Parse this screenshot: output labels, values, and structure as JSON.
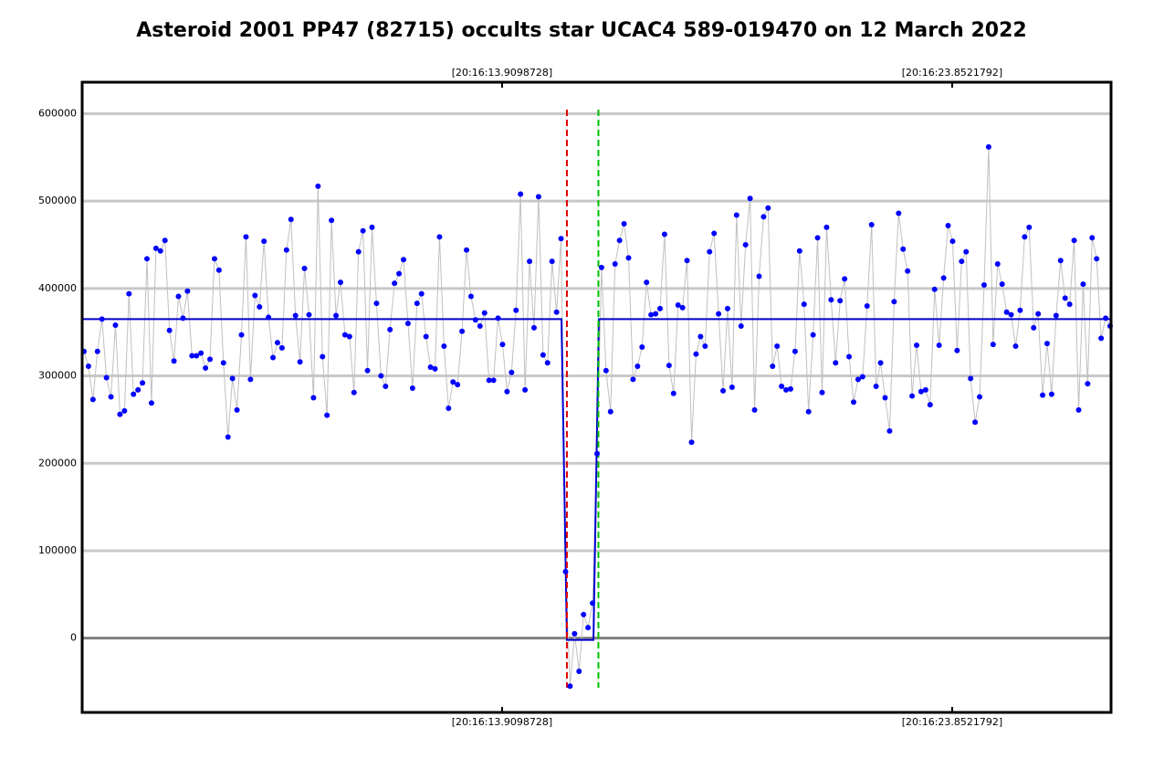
{
  "chart_data": {
    "type": "scatter",
    "title": "Asteroid 2001 PP47 (82715) occults star UCAC4 589-019470 on 12 March 2022",
    "xlim": [
      -0.4,
      228.2
    ],
    "xticks": [
      {
        "value": 92.9,
        "label": "[20:16:13.9098728]"
      },
      {
        "value": 192.9,
        "label": "[20:16:23.8521792]"
      }
    ],
    "ylim": [
      -85000,
      636000
    ],
    "yticks": [
      0,
      100000,
      200000,
      300000,
      400000,
      500000,
      600000
    ],
    "grid": true,
    "series": [
      {
        "color": "#0000ff",
        "line_color": "#c0c0c0",
        "values": [
          328000,
          311000,
          273000,
          328000,
          365000,
          298000,
          276000,
          358000,
          256000,
          260000,
          394000,
          279000,
          284000,
          292000,
          434000,
          269000,
          446000,
          443000,
          455000,
          352000,
          317000,
          391000,
          366000,
          397000,
          323000,
          323000,
          326000,
          309000,
          319000,
          434000,
          421000,
          315000,
          230000,
          297000,
          261000,
          347000,
          459000,
          296000,
          392000,
          379000,
          454000,
          367000,
          321000,
          338000,
          332000,
          444000,
          479000,
          369000,
          316000,
          423000,
          370000,
          275000,
          517000,
          322000,
          255000,
          478000,
          369000,
          407000,
          347000,
          345000,
          281000,
          442000,
          466000,
          306000,
          470000,
          383000,
          300000,
          288000,
          353000,
          406000,
          417000,
          433000,
          360000,
          286000,
          383000,
          394000,
          345000,
          310000,
          308000,
          459000,
          334000,
          263000,
          293000,
          290000,
          351000,
          444000,
          391000,
          364000,
          357000,
          372000,
          295000,
          295000,
          366000,
          336000,
          282000,
          304000,
          375000,
          508000,
          284000,
          431000,
          355000,
          505000,
          324000,
          315000,
          431000,
          373000,
          457000,
          76000,
          -55000,
          5000,
          -38000,
          27000,
          12000,
          40000,
          211000,
          424000,
          306000,
          259000,
          428000,
          455000,
          474000,
          435000,
          296000,
          311000,
          333000,
          407000,
          370000,
          371000,
          377000,
          462000,
          312000,
          280000,
          381000,
          378000,
          432000,
          224000,
          325000,
          345000,
          334000,
          442000,
          463000,
          371000,
          283000,
          377000,
          287000,
          484000,
          357000,
          450000,
          503000,
          261000,
          414000,
          482000,
          492000,
          311000,
          334000,
          288000,
          284000,
          285000,
          328000,
          443000,
          382000,
          259000,
          347000,
          458000,
          281000,
          470000,
          387000,
          315000,
          386000,
          411000,
          322000,
          270000,
          296000,
          299000,
          380000,
          473000,
          288000,
          315000,
          275000,
          237000,
          385000,
          486000,
          445000,
          420000,
          277000,
          335000,
          282000,
          284000,
          267000,
          399000,
          335000,
          412000,
          472000,
          454000,
          329000,
          431000,
          442000,
          297000,
          247000,
          276000,
          404000,
          562000,
          336000,
          428000,
          405000,
          373000,
          370000,
          334000,
          375000,
          459000,
          470000,
          355000,
          371000,
          278000,
          337000,
          279000,
          369000,
          432000,
          389000,
          382000,
          455000,
          261000,
          405000,
          291000,
          458000,
          434000,
          343000,
          366000,
          357000
        ]
      }
    ],
    "model": {
      "color": "#0000cc",
      "x": [
        -0.4,
        106.1,
        107.3,
        113.2,
        114.4,
        228.2
      ],
      "values": [
        365000,
        365000,
        -2000,
        -2000,
        365000,
        365000
      ]
    },
    "vlines": [
      {
        "x": 107.3,
        "color": "#e00000"
      },
      {
        "x": 114.3,
        "color": "#00c000"
      }
    ]
  }
}
